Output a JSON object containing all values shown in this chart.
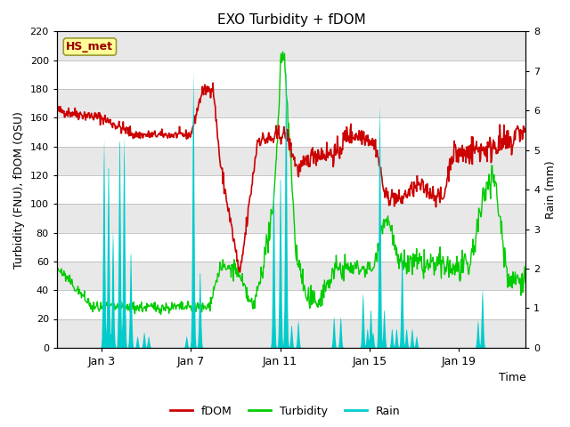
{
  "title": "EXO Turbidity + fDOM",
  "xlabel": "Time",
  "ylabel_left": "Turbidity (FNU), fDOM (QSU)",
  "ylabel_right": "Rain (mm)",
  "ylim_left": [
    0,
    220
  ],
  "ylim_right": [
    0,
    8.0
  ],
  "yticks_left": [
    0,
    20,
    40,
    60,
    80,
    100,
    120,
    140,
    160,
    180,
    200,
    220
  ],
  "yticks_right": [
    0.0,
    1.0,
    2.0,
    3.0,
    4.0,
    5.0,
    6.0,
    7.0,
    8.0
  ],
  "xtick_labels": [
    "Jan 3",
    "Jan 7",
    "Jan 11",
    "Jan 15",
    "Jan 19"
  ],
  "xtick_positions": [
    2,
    6,
    10,
    14,
    18
  ],
  "xlim": [
    0,
    21
  ],
  "annotation_text": "HS_met",
  "fig_bg_color": "#ffffff",
  "plot_bg_color": "#ffffff",
  "band_color": "#e8e8e8",
  "fdom_color": "#cc0000",
  "turbidity_color": "#00cc00",
  "rain_color": "#00cccc",
  "grid_color": "#d0d0d0"
}
